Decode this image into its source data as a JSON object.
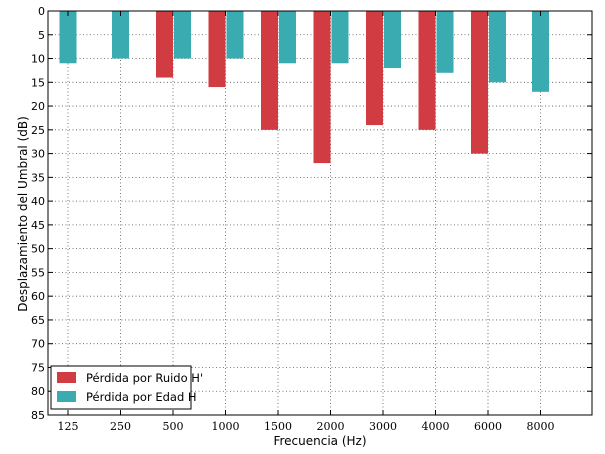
{
  "chart_data": {
    "type": "bar",
    "title": "",
    "xlabel": "Frecuencia (Hz)",
    "ylabel": "Desplazamiento del Umbral (dB)",
    "categories": [
      "125",
      "250",
      "500",
      "1000",
      "1500",
      "2000",
      "3000",
      "4000",
      "6000",
      "8000"
    ],
    "ylim": [
      0,
      85
    ],
    "y_inverted": true,
    "y_ticks": [
      0,
      5,
      10,
      15,
      20,
      25,
      30,
      35,
      40,
      45,
      50,
      55,
      60,
      65,
      70,
      75,
      80,
      85
    ],
    "grid": true,
    "legend_position": "bottom-left",
    "series": [
      {
        "name": "Pérdida por Ruido H'",
        "color": "#d13b42",
        "values": [
          null,
          null,
          14,
          16,
          25,
          32,
          24,
          25,
          30,
          null
        ]
      },
      {
        "name": "Pérdida por Edad H",
        "color": "#3aabb0",
        "values": [
          11,
          10,
          10,
          10,
          11,
          11,
          12,
          13,
          15,
          17
        ]
      }
    ]
  }
}
